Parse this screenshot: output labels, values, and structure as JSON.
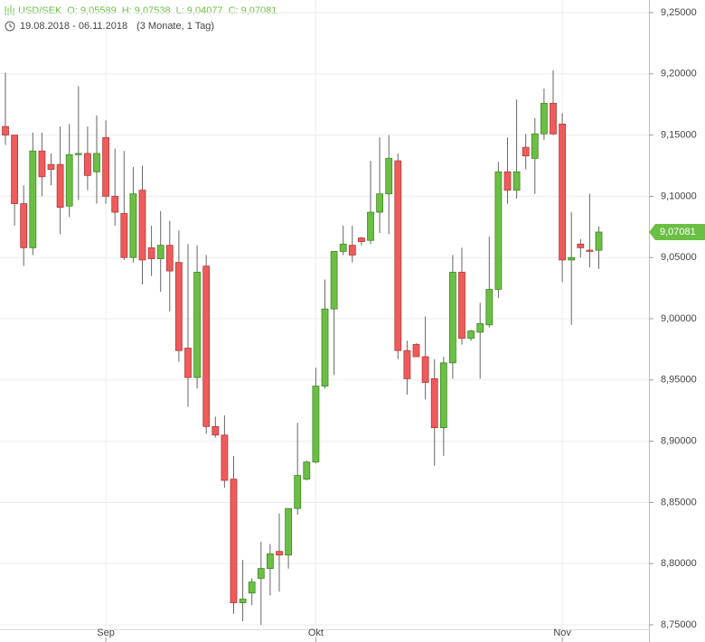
{
  "chart_data": {
    "type": "candlestick",
    "symbol": "USD/SEK",
    "header_stats": [
      "O: 9,05589",
      "H: 9,07538",
      "L: 9,04077",
      "C: 9,07081"
    ],
    "date_range": "19.08.2018 - 06.11.2018",
    "period": "(3 Monate, 1 Tag)",
    "categories": [
      null,
      null,
      null,
      null,
      null,
      null,
      null,
      null,
      null,
      null,
      null,
      "Sep",
      null,
      null,
      null,
      null,
      null,
      null,
      null,
      null,
      null,
      null,
      null,
      null,
      null,
      null,
      null,
      null,
      null,
      null,
      null,
      null,
      null,
      null,
      "Okt",
      null,
      null,
      null,
      null,
      null,
      null,
      null,
      null,
      null,
      null,
      null,
      null,
      null,
      null,
      null,
      null,
      null,
      null,
      null,
      null,
      null,
      null,
      null,
      null,
      null,
      null,
      "Nov",
      null,
      null,
      null,
      null
    ],
    "open": [
      9.157,
      9.15,
      9.094,
      9.058,
      9.137,
      9.126,
      9.126,
      9.092,
      9.134,
      9.135,
      9.12,
      9.148,
      9.1,
      9.086,
      9.05,
      9.105,
      9.058,
      9.049,
      9.06,
      9.046,
      8.976,
      8.952,
      9.043,
      8.912,
      8.905,
      8.869,
      8.768,
      8.776,
      8.788,
      8.796,
      8.81,
      8.807,
      8.845,
      8.869,
      8.883,
      8.945,
      9.008,
      9.055,
      9.06,
      9.066,
      9.064,
      9.087,
      9.102,
      9.129,
      8.974,
      8.979,
      8.969,
      8.951,
      8.911,
      8.964,
      9.038,
      8.984,
      8.989,
      8.995,
      9.024,
      9.12,
      9.105,
      9.14,
      9.131,
      9.151,
      9.176,
      9.159,
      9.048,
      9.061,
      9.056,
      9.05589
    ],
    "high": [
      9.201,
      9.15,
      9.109,
      9.152,
      9.152,
      9.135,
      9.157,
      9.159,
      9.19,
      9.157,
      9.166,
      9.162,
      9.139,
      9.137,
      9.124,
      9.125,
      9.076,
      9.088,
      9.08,
      9.072,
      9.061,
      9.06,
      9.052,
      8.92,
      8.921,
      8.888,
      8.803,
      8.788,
      8.818,
      8.816,
      8.841,
      8.845,
      8.915,
      8.884,
      8.96,
      9.032,
      9.055,
      9.076,
      9.076,
      9.067,
      9.129,
      9.148,
      9.15,
      9.135,
      8.982,
      8.98,
      9.002,
      8.967,
      8.969,
      9.052,
      9.058,
      8.991,
      9.013,
      9.067,
      9.128,
      9.148,
      9.179,
      9.151,
      9.164,
      9.188,
      9.203,
      9.168,
      9.087,
      9.065,
      9.102,
      9.07538
    ],
    "low": [
      9.142,
      9.076,
      9.043,
      9.052,
      9.1,
      9.109,
      9.069,
      9.083,
      9.097,
      9.105,
      9.094,
      9.094,
      9.076,
      9.048,
      9.046,
      9.028,
      9.035,
      9.022,
      9.006,
      8.965,
      8.928,
      8.943,
      8.906,
      8.903,
      8.862,
      8.759,
      8.753,
      8.766,
      8.75,
      8.774,
      8.777,
      8.796,
      8.84,
      8.868,
      8.882,
      8.943,
      8.954,
      9.052,
      9.046,
      9.06,
      9.061,
      9.07,
      9.069,
      8.967,
      8.938,
      8.969,
      8.934,
      8.88,
      8.888,
      8.951,
      8.979,
      8.982,
      8.951,
      8.993,
      9.017,
      9.094,
      9.098,
      9.122,
      9.102,
      9.146,
      9.15,
      9.03,
      8.995,
      9.05,
      9.042,
      9.04077
    ],
    "close": [
      9.15,
      9.094,
      9.058,
      9.137,
      9.116,
      9.122,
      9.091,
      9.134,
      9.135,
      9.117,
      9.135,
      9.1,
      9.087,
      9.05,
      9.102,
      9.048,
      9.049,
      9.06,
      9.039,
      8.974,
      8.952,
      9.038,
      8.912,
      8.905,
      8.868,
      8.768,
      8.771,
      8.785,
      8.796,
      8.808,
      8.807,
      8.845,
      8.872,
      8.883,
      8.945,
      9.008,
      9.055,
      9.061,
      9.052,
      9.063,
      9.087,
      9.102,
      9.131,
      8.974,
      8.951,
      8.969,
      8.948,
      8.911,
      8.964,
      9.038,
      8.984,
      8.99,
      8.996,
      9.024,
      9.12,
      9.105,
      9.12,
      9.133,
      9.151,
      9.176,
      9.151,
      9.048,
      9.05,
      9.058,
      9.055,
      9.07081
    ],
    "up_color": "#6cbf45",
    "down_color": "#ef5b5b",
    "ylim": [
      8.75,
      9.25
    ],
    "yticks": [
      {
        "value": 8.75,
        "label": "8,75000"
      },
      {
        "value": 8.8,
        "label": "8,80000"
      },
      {
        "value": 8.85,
        "label": "8,85000"
      },
      {
        "value": 8.9,
        "label": "8,90000"
      },
      {
        "value": 8.95,
        "label": "8,95000"
      },
      {
        "value": 9.0,
        "label": "9,00000"
      },
      {
        "value": 9.05,
        "label": "9,05000"
      },
      {
        "value": 9.1,
        "label": "9,10000"
      },
      {
        "value": 9.15,
        "label": "9,15000"
      },
      {
        "value": 9.2,
        "label": "9,20000"
      },
      {
        "value": 9.25,
        "label": "9,25000"
      }
    ],
    "last_price": {
      "value": 9.07081,
      "label": "9,07081"
    },
    "grid": true
  }
}
